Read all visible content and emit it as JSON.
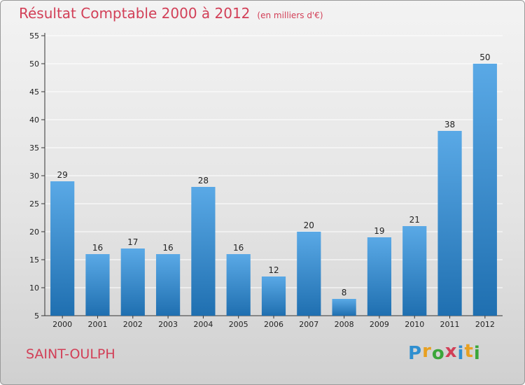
{
  "chart_data": {
    "type": "bar",
    "title": "Résultat Comptable 2000 à 2012",
    "subtitle": "(en milliers d'€)",
    "categories": [
      "2000",
      "2001",
      "2002",
      "2003",
      "2004",
      "2005",
      "2006",
      "2007",
      "2008",
      "2009",
      "2010",
      "2011",
      "2012"
    ],
    "values": [
      29,
      16,
      17,
      16,
      28,
      16,
      12,
      20,
      8,
      19,
      21,
      38,
      50
    ],
    "data_labels": [
      "29",
      "16",
      "17",
      "16",
      "28",
      "16",
      "12",
      "20",
      "8",
      "19",
      "21",
      "38",
      "50"
    ],
    "ylim": [
      5,
      55
    ],
    "yticks": [
      5,
      10,
      15,
      20,
      25,
      30,
      35,
      40,
      45,
      50,
      55
    ],
    "ytick_labels": [
      "5",
      "10",
      "15",
      "20",
      "25",
      "30",
      "35",
      "40",
      "45",
      "50",
      "55"
    ],
    "grid": true,
    "xlabel": "",
    "ylabel": ""
  },
  "town": "SAINT-OULPH",
  "logo": {
    "letters": [
      "P",
      "r",
      "o",
      "x",
      "i",
      "t",
      "i"
    ],
    "colors": [
      "#2f8fd0",
      "#e8a020",
      "#3aa63a",
      "#d23f57",
      "#2f8fd0",
      "#e8a020",
      "#3aa63a"
    ]
  },
  "colors": {
    "title": "#d23f57",
    "bar_light": "#5aa9e6",
    "bar_dark": "#1f6fb0",
    "grid": "#ffffff"
  }
}
